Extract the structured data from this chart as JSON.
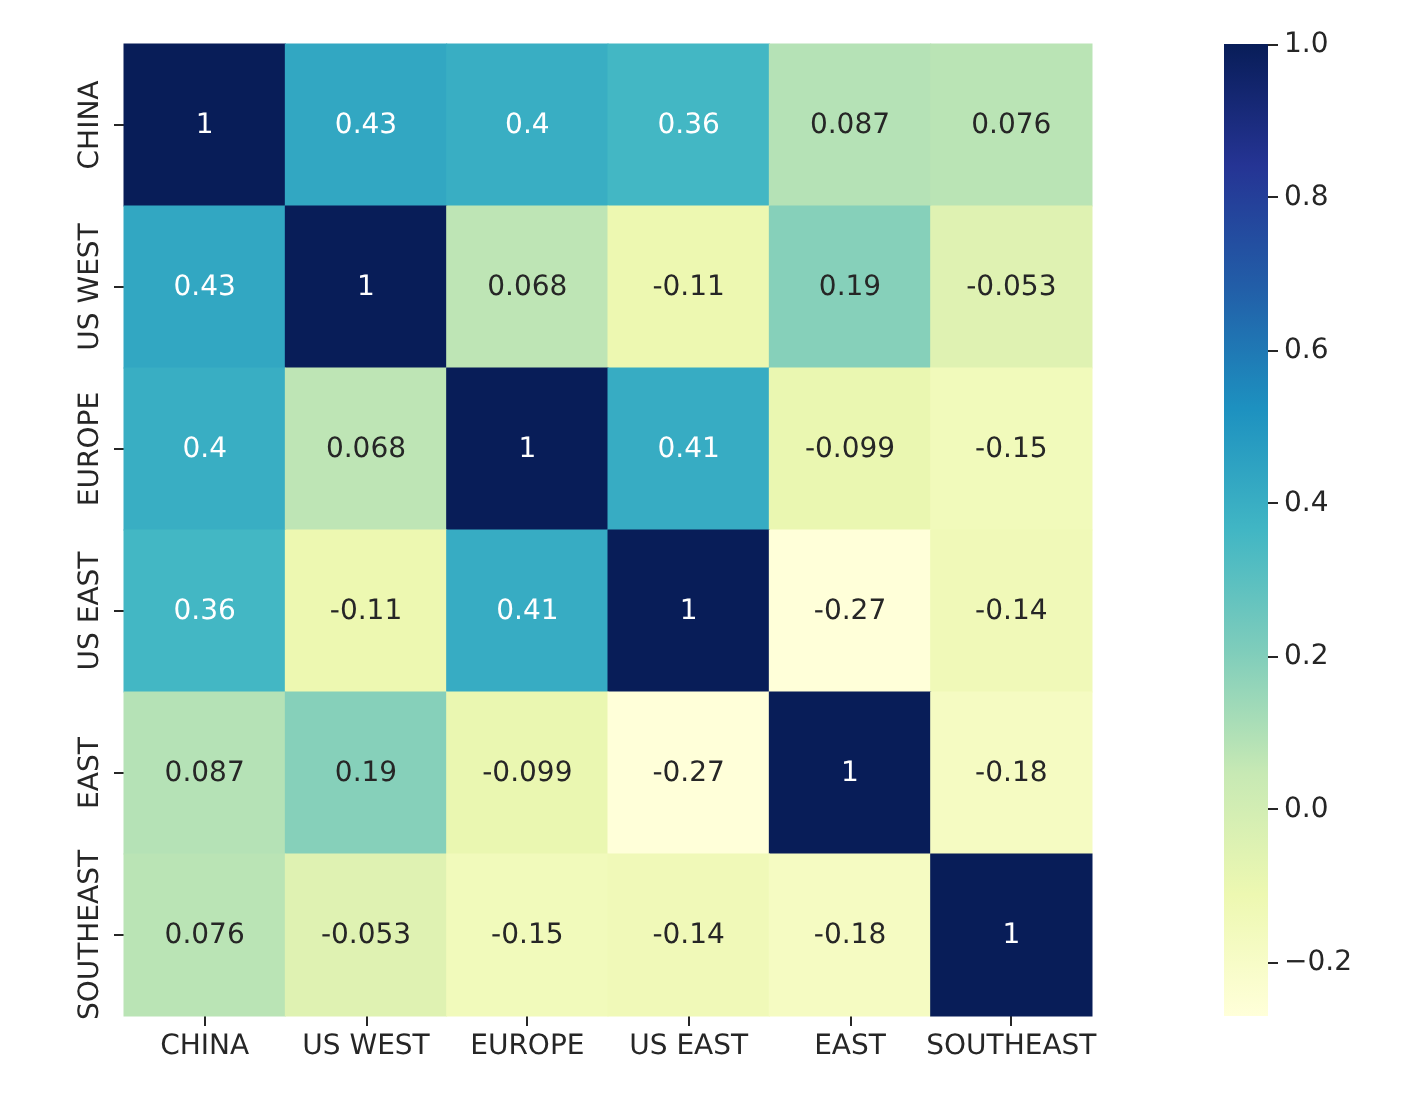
{
  "chart_data": {
    "type": "heatmap",
    "categories": [
      "CHINA",
      "US WEST",
      "EUROPE",
      "US EAST",
      "EAST",
      "SOUTHEAST"
    ],
    "y_categories": [
      "CHINA",
      "US WEST",
      "EUROPE",
      "US EAST",
      "EAST",
      "SOUTHEAST"
    ],
    "cells": [
      [
        1,
        0.43,
        0.4,
        0.36,
        0.087,
        0.076
      ],
      [
        0.43,
        1,
        0.068,
        -0.11,
        0.19,
        -0.053
      ],
      [
        0.4,
        0.068,
        1,
        0.41,
        -0.099,
        -0.15
      ],
      [
        0.36,
        -0.11,
        0.41,
        1,
        -0.27,
        -0.14
      ],
      [
        0.087,
        0.19,
        -0.099,
        -0.27,
        1,
        -0.18
      ],
      [
        0.076,
        -0.053,
        -0.15,
        -0.14,
        -0.18,
        1
      ]
    ],
    "data_labels": true,
    "clim": [
      -0.27,
      1
    ],
    "cticks": [
      {
        "value": -0.2,
        "label": "−0.2"
      },
      {
        "value": 0,
        "label": "0.0"
      },
      0.2,
      0.4,
      0.6,
      0.8,
      {
        "value": 1,
        "label": "1.0"
      }
    ]
  }
}
